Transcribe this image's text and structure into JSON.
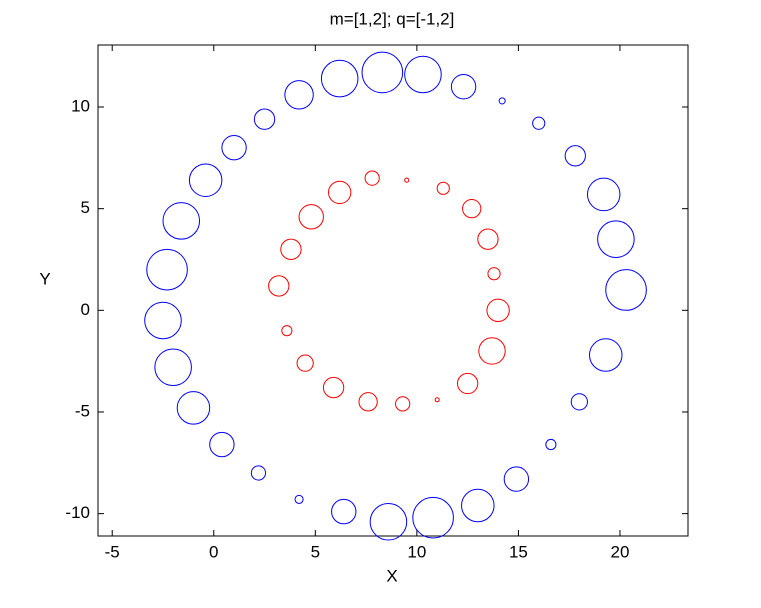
{
  "chart_data": {
    "type": "scatter",
    "title": "m=[1,2]; q=[-1,2]",
    "x_label": "X",
    "y_label": "Y",
    "xlim": [
      -5.7,
      23.35
    ],
    "ylim": [
      -11.1,
      13.05
    ],
    "xticks": [
      -5,
      0,
      5,
      10,
      15,
      20
    ],
    "yticks": [
      -10,
      -5,
      0,
      5,
      10
    ],
    "marker": "circle",
    "size_unit": "radius in data units",
    "series": [
      {
        "color": "#0000ff",
        "x": [
          20.3,
          19.8,
          19.2,
          17.8,
          16.0,
          14.2,
          12.3,
          10.3,
          8.3,
          6.2,
          4.2,
          2.5,
          1.0,
          -0.4,
          -1.6,
          -2.3,
          -2.5,
          -2.0,
          -1.0,
          0.4,
          2.2,
          4.2,
          6.4,
          8.6,
          10.8,
          13.0,
          14.9,
          16.6,
          18.0,
          19.3
        ],
        "y": [
          1.0,
          3.5,
          5.7,
          7.6,
          9.2,
          10.3,
          11.0,
          11.6,
          11.7,
          11.4,
          10.6,
          9.4,
          8.0,
          6.4,
          4.4,
          2.0,
          -0.5,
          -2.8,
          -4.8,
          -6.6,
          -8.0,
          -9.3,
          -9.9,
          -10.4,
          -10.2,
          -9.6,
          -8.3,
          -6.6,
          -4.5,
          -2.2
        ],
        "sizes": [
          1.0,
          0.9,
          0.8,
          0.5,
          0.3,
          0.15,
          0.6,
          0.9,
          1.0,
          0.9,
          0.7,
          0.5,
          0.6,
          0.8,
          0.9,
          1.0,
          0.9,
          0.9,
          0.8,
          0.6,
          0.35,
          0.2,
          0.6,
          0.9,
          1.0,
          0.8,
          0.6,
          0.25,
          0.4,
          0.8
        ]
      },
      {
        "color": "#ff0000",
        "x": [
          14.0,
          13.8,
          13.5,
          12.7,
          11.3,
          9.5,
          7.8,
          6.2,
          4.8,
          3.8,
          3.2,
          3.6,
          4.5,
          5.9,
          7.6,
          9.3,
          11.0,
          12.5,
          13.7
        ],
        "y": [
          0.0,
          1.8,
          3.5,
          5.0,
          6.0,
          6.4,
          6.5,
          5.8,
          4.6,
          3.0,
          1.2,
          -1.0,
          -2.6,
          -3.8,
          -4.5,
          -4.6,
          -4.4,
          -3.6,
          -2.0
        ],
        "sizes": [
          0.55,
          0.3,
          0.5,
          0.45,
          0.3,
          0.1,
          0.35,
          0.55,
          0.6,
          0.5,
          0.5,
          0.25,
          0.4,
          0.5,
          0.45,
          0.35,
          0.1,
          0.5,
          0.65
        ]
      }
    ]
  }
}
